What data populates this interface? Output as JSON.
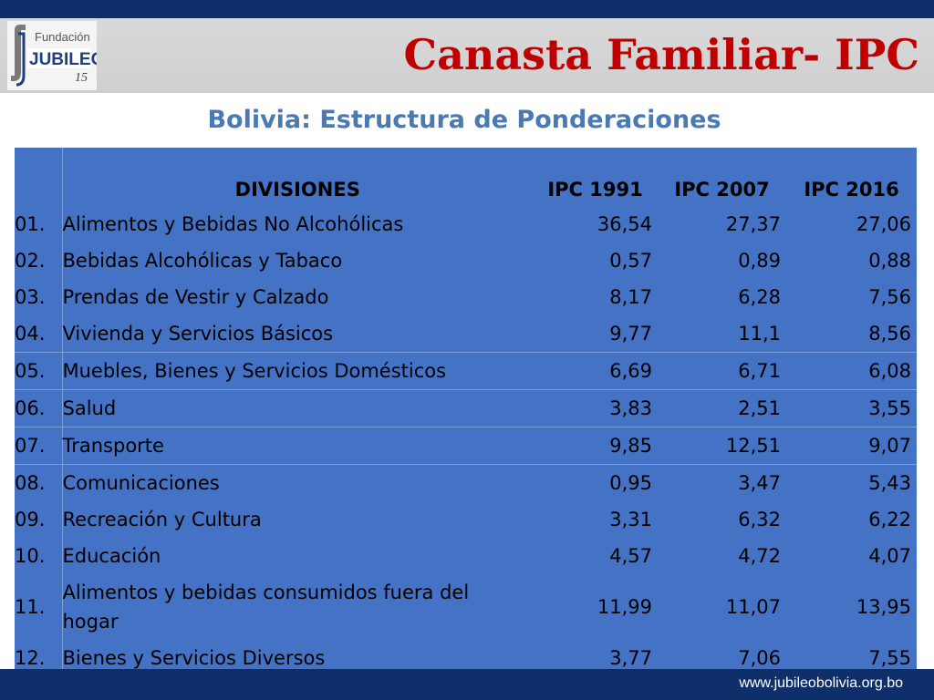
{
  "header": {
    "title": "Canasta Familiar- IPC",
    "logo": {
      "line1": "Fundación",
      "line2": "JUBILEO",
      "badge": "15"
    }
  },
  "subtitle": "Bolivia: Estructura de Ponderaciones",
  "table": {
    "columns": [
      "DIVISIONES",
      "IPC 1991",
      "IPC 2007",
      "IPC 2016"
    ],
    "rows": [
      {
        "code": "01.",
        "division": "Alimentos y Bebidas No Alcohólicas",
        "v1991": "36,54",
        "v2007": "27,37",
        "v2016": "27,06"
      },
      {
        "code": "02.",
        "division": "Bebidas Alcohólicas y Tabaco",
        "v1991": "0,57",
        "v2007": "0,89",
        "v2016": "0,88"
      },
      {
        "code": "03.",
        "division": "Prendas de Vestir y Calzado",
        "v1991": "8,17",
        "v2007": "6,28",
        "v2016": "7,56"
      },
      {
        "code": "04.",
        "division": "Vivienda y Servicios Básicos",
        "v1991": "9,77",
        "v2007": "11,1",
        "v2016": "8,56"
      },
      {
        "code": "05.",
        "division": "Muebles, Bienes y Servicios Domésticos",
        "v1991": "6,69",
        "v2007": "6,71",
        "v2016": "6,08"
      },
      {
        "code": "06.",
        "division": "Salud",
        "v1991": "3,83",
        "v2007": "2,51",
        "v2016": "3,55"
      },
      {
        "code": "07.",
        "division": "Transporte",
        "v1991": "9,85",
        "v2007": "12,51",
        "v2016": "9,07"
      },
      {
        "code": "08.",
        "division": "Comunicaciones",
        "v1991": "0,95",
        "v2007": "3,47",
        "v2016": "5,43"
      },
      {
        "code": "09.",
        "division": "Recreación y Cultura",
        "v1991": "3,31",
        "v2007": "6,32",
        "v2016": "6,22"
      },
      {
        "code": "10.",
        "division": "Educación",
        "v1991": "4,57",
        "v2007": "4,72",
        "v2016": "4,07"
      },
      {
        "code": "11.",
        "division": "Alimentos y bebidas consumidos fuera del hogar",
        "v1991": "11,99",
        "v2007": "11,07",
        "v2016": "13,95"
      },
      {
        "code": "12.",
        "division": "Bienes y Servicios Diversos",
        "v1991": "3,77",
        "v2007": "7,06",
        "v2016": "7,55"
      }
    ]
  },
  "footer": {
    "url": "www.jubileobolivia.org.bo"
  },
  "colors": {
    "title": "#c00000",
    "subtitle": "#4a7ab5",
    "table_bg": "#4472c4",
    "bars": "#0f2f6b"
  }
}
